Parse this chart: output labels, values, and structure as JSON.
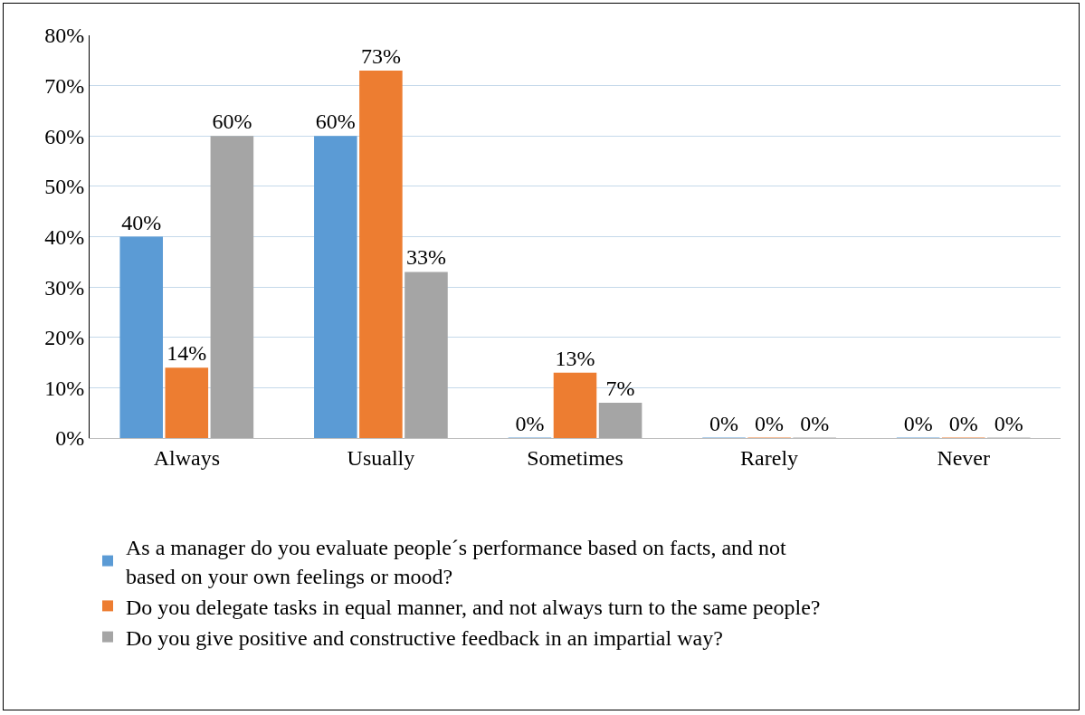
{
  "chart_data": {
    "type": "bar",
    "categories": [
      "Always",
      "Usually",
      "Sometimes",
      "Rarely",
      "Never"
    ],
    "series": [
      {
        "name": "As a manager do you evaluate people´s performance based on facts, and not based on your own feelings or mood?",
        "color": "#5b9bd5",
        "values": [
          40,
          60,
          0,
          0,
          0
        ],
        "value_labels": [
          "40%",
          "60%",
          "0%",
          "0%",
          "0%"
        ]
      },
      {
        "name": "Do you delegate tasks in equal manner, and not always turn to the same people?",
        "color": "#ed7d31",
        "values": [
          14,
          73,
          13,
          0,
          0
        ],
        "value_labels": [
          "14%",
          "73%",
          "13%",
          "0%",
          "0%"
        ]
      },
      {
        "name": "Do you give positive and constructive feedback in an impartial way?",
        "color": "#a5a5a5",
        "values": [
          60,
          33,
          7,
          0,
          0
        ],
        "value_labels": [
          "60%",
          "33%",
          "7%",
          "0%",
          "0%"
        ]
      }
    ],
    "ylim": [
      0,
      80
    ],
    "yticks": [
      {
        "value": 0,
        "label": "0%"
      },
      {
        "value": 10,
        "label": "10%"
      },
      {
        "value": 20,
        "label": "20%"
      },
      {
        "value": 30,
        "label": "30%"
      },
      {
        "value": 40,
        "label": "40%"
      },
      {
        "value": 50,
        "label": "50%"
      },
      {
        "value": 60,
        "label": "60%"
      },
      {
        "value": 70,
        "label": "70%"
      },
      {
        "value": 80,
        "label": "80%"
      }
    ],
    "grid": "y",
    "legend": "bottom"
  }
}
